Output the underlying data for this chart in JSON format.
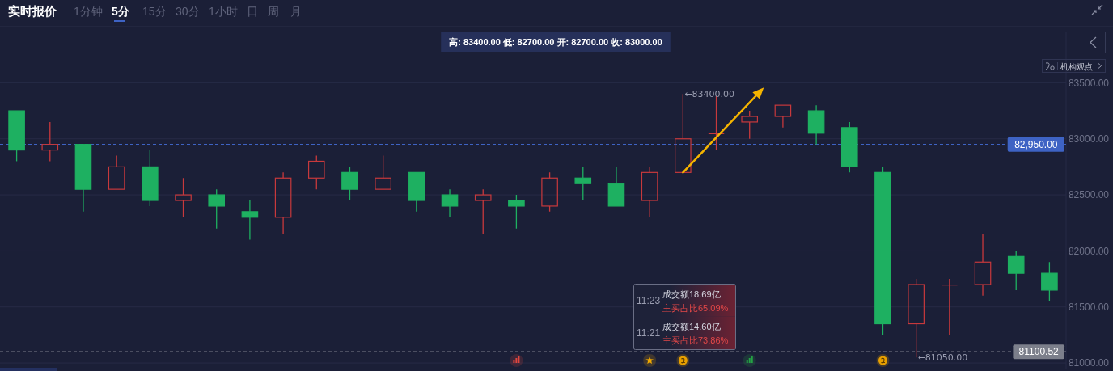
{
  "chart_data": {
    "type": "candlestick",
    "title": "实时报价",
    "categories": [
      null,
      null,
      null,
      null,
      null,
      null,
      null,
      null,
      null,
      null,
      null,
      null,
      null,
      null,
      null,
      null,
      null,
      null,
      null,
      null,
      null,
      null,
      null,
      null,
      null,
      null,
      null,
      null,
      null,
      null,
      null,
      null
    ],
    "ohlc": [
      [
        83250,
        83250,
        82800,
        82900
      ],
      [
        82900,
        83150,
        82800,
        82950
      ],
      [
        82950,
        82950,
        82350,
        82550
      ],
      [
        82550,
        82850,
        82550,
        82750
      ],
      [
        82750,
        82900,
        82400,
        82450
      ],
      [
        82450,
        82650,
        82300,
        82500
      ],
      [
        82500,
        82550,
        82200,
        82400
      ],
      [
        82350,
        82450,
        82100,
        82300
      ],
      [
        82300,
        82700,
        82150,
        82650
      ],
      [
        82650,
        82850,
        82550,
        82800
      ],
      [
        82700,
        82750,
        82450,
        82550
      ],
      [
        82550,
        82850,
        82550,
        82650
      ],
      [
        82700,
        82700,
        82350,
        82450
      ],
      [
        82500,
        82550,
        82300,
        82400
      ],
      [
        82450,
        82550,
        82150,
        82500
      ],
      [
        82450,
        82500,
        82200,
        82400
      ],
      [
        82400,
        82700,
        82350,
        82650
      ],
      [
        82650,
        82750,
        82450,
        82600
      ],
      [
        82600,
        82750,
        82400,
        82400
      ],
      [
        82450,
        82750,
        82300,
        82700
      ],
      [
        82700,
        83400,
        82700,
        83000
      ],
      [
        83050,
        83380,
        82900,
        83050
      ],
      [
        83150,
        83250,
        83000,
        83200
      ],
      [
        83200,
        83300,
        83100,
        83300
      ],
      [
        83250,
        83300,
        82950,
        83050
      ],
      [
        83100,
        83150,
        82700,
        82750
      ],
      [
        82700,
        82750,
        81250,
        81350
      ],
      [
        81350,
        81750,
        81050,
        81700
      ],
      [
        81700,
        81750,
        81250,
        81700
      ],
      [
        81700,
        82150,
        81600,
        81900
      ],
      [
        81950,
        82000,
        81650,
        81800
      ],
      [
        81800,
        81900,
        81550,
        81650
      ]
    ],
    "colors": [
      "#1eb061",
      "#c8393c",
      "#1eb061",
      "#c8393c",
      "#1eb061",
      "#c8393c",
      "#1eb061",
      "#1eb061",
      "#c8393c",
      "#c8393c",
      "#1eb061",
      "#c8393c",
      "#1eb061",
      "#1eb061",
      "#c8393c",
      "#1eb061",
      "#c8393c",
      "#1eb061",
      "#1eb061",
      "#c8393c",
      "#c8393c",
      "#c8393c",
      "#c8393c",
      "#c8393c",
      "#1eb061",
      "#1eb061",
      "#1eb061",
      "#c8393c",
      "#c8393c",
      "#c8393c",
      "#1eb061",
      "#1eb061"
    ],
    "ylim": [
      80950,
      83950
    ],
    "yticks": [
      {
        "value": 81000,
        "label": "81000.00"
      },
      {
        "value": 81500,
        "label": "81500.00"
      },
      {
        "value": 82000,
        "label": "82000.00"
      },
      {
        "value": 82500,
        "label": "82500.00"
      },
      {
        "value": 83000,
        "label": "83000.00"
      },
      {
        "value": 83500,
        "label": "83500.00"
      }
    ],
    "grid": "y",
    "tick_labels": "y",
    "ref_lines": [
      {
        "axis": "y",
        "value": 82950,
        "label": "82,950.00",
        "color": "#3e63c4",
        "line_style": "dashed"
      },
      {
        "axis": "y",
        "value": 81100.52,
        "label": "81100.52",
        "color": "#7c7f8b",
        "line_style": "dashed"
      }
    ],
    "annotations": [
      "1分钟",
      "5分",
      "15分",
      "30分",
      "1小时",
      "日",
      "周",
      "月",
      "高: 83400.00 低: 82700.00 开: 82700.00 收: 83000.00",
      "机构观点",
      "11:23",
      "成交额18.69亿",
      "主买占比65.09%",
      "11:21",
      "成交额14.60亿",
      "主买占比73.86%",
      "←83400.00",
      "←81050.00"
    ]
  }
}
